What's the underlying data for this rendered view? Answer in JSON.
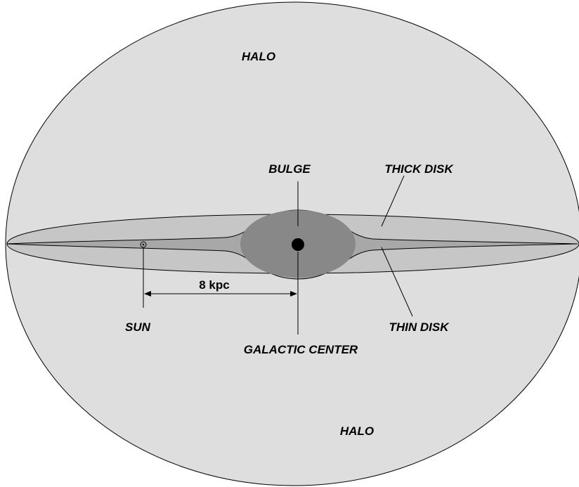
{
  "labels": {
    "halo_top": "HALO",
    "bulge": "BULGE",
    "thick_disk": "THICK DISK",
    "sun": "SUN",
    "thin_disk": "THIN DISK",
    "galactic_center": "GALACTIC CENTER",
    "halo_bottom": "HALO",
    "distance": "8 kpc"
  }
}
